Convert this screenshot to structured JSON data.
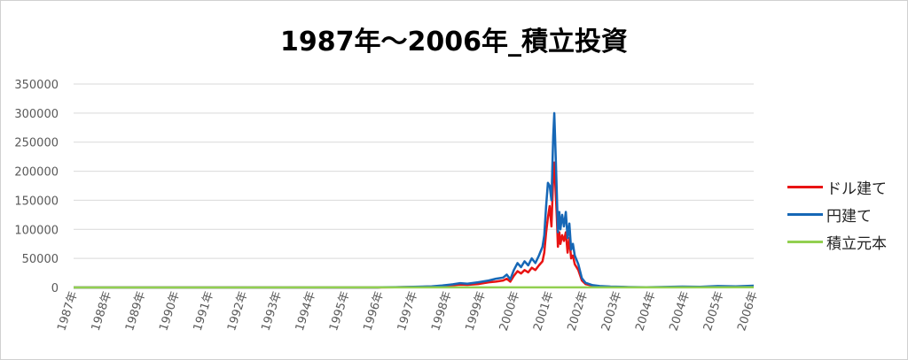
{
  "chart_data": {
    "type": "line",
    "title": "1987年～2006年_積立投資",
    "xlabel": "",
    "ylabel": "",
    "ylim": [
      0,
      350000
    ],
    "yticks": [
      0,
      50000,
      100000,
      150000,
      200000,
      250000,
      300000,
      350000
    ],
    "ytick_labels": [
      "0",
      "50000",
      "100000",
      "150000",
      "200000",
      "250000",
      "300000",
      "350000"
    ],
    "xtick_labels": [
      "1987年",
      "1988年",
      "1989年",
      "1990年",
      "1991年",
      "1992年",
      "1993年",
      "1994年",
      "1995年",
      "1996年",
      "1997年",
      "1998年",
      "1999年",
      "2000年",
      "2001年",
      "2002年",
      "2003年",
      "2004年",
      "2004年",
      "2005年",
      "2006年"
    ],
    "grid": true,
    "legend_position": "right",
    "series": [
      {
        "name": "ドル建て",
        "color": "#e81313",
        "points": [
          [
            1987.0,
            0
          ],
          [
            1995.5,
            0
          ],
          [
            1995.6,
            200
          ],
          [
            1996.0,
            400
          ],
          [
            1996.5,
            800
          ],
          [
            1997.0,
            1500
          ],
          [
            1997.3,
            2500
          ],
          [
            1997.6,
            4000
          ],
          [
            1997.8,
            5000
          ],
          [
            1998.0,
            4500
          ],
          [
            1998.3,
            6000
          ],
          [
            1998.6,
            9000
          ],
          [
            1998.8,
            10000
          ],
          [
            1999.0,
            12000
          ],
          [
            1999.1,
            15000
          ],
          [
            1999.2,
            10000
          ],
          [
            1999.3,
            20000
          ],
          [
            1999.4,
            28000
          ],
          [
            1999.5,
            24000
          ],
          [
            1999.6,
            30000
          ],
          [
            1999.7,
            26000
          ],
          [
            1999.8,
            34000
          ],
          [
            1999.9,
            30000
          ],
          [
            2000.0,
            38000
          ],
          [
            2000.1,
            45000
          ],
          [
            2000.15,
            60000
          ],
          [
            2000.2,
            95000
          ],
          [
            2000.25,
            120000
          ],
          [
            2000.3,
            140000
          ],
          [
            2000.35,
            105000
          ],
          [
            2000.4,
            190000
          ],
          [
            2000.43,
            215000
          ],
          [
            2000.47,
            160000
          ],
          [
            2000.5,
            120000
          ],
          [
            2000.53,
            70000
          ],
          [
            2000.57,
            95000
          ],
          [
            2000.6,
            75000
          ],
          [
            2000.65,
            90000
          ],
          [
            2000.7,
            80000
          ],
          [
            2000.75,
            95000
          ],
          [
            2000.8,
            60000
          ],
          [
            2000.85,
            85000
          ],
          [
            2000.9,
            50000
          ],
          [
            2000.95,
            55000
          ],
          [
            2001.0,
            40000
          ],
          [
            2001.1,
            30000
          ],
          [
            2001.2,
            12000
          ],
          [
            2001.3,
            6000
          ],
          [
            2001.5,
            3000
          ],
          [
            2001.7,
            2000
          ],
          [
            2002.0,
            1200
          ],
          [
            2002.3,
            800
          ],
          [
            2002.5,
            500
          ],
          [
            2003.0,
            300
          ],
          [
            2004.0,
            400
          ],
          [
            2004.5,
            500
          ],
          [
            2005.0,
            600
          ],
          [
            2005.5,
            700
          ],
          [
            2006.0,
            900
          ]
        ]
      },
      {
        "name": "円建て",
        "color": "#1667b6",
        "points": [
          [
            1987.0,
            0
          ],
          [
            1995.5,
            0
          ],
          [
            1995.6,
            300
          ],
          [
            1996.0,
            600
          ],
          [
            1996.5,
            1200
          ],
          [
            1997.0,
            2000
          ],
          [
            1997.3,
            3500
          ],
          [
            1997.6,
            5500
          ],
          [
            1997.8,
            7500
          ],
          [
            1998.0,
            6500
          ],
          [
            1998.3,
            9000
          ],
          [
            1998.6,
            12000
          ],
          [
            1998.8,
            15000
          ],
          [
            1999.0,
            17000
          ],
          [
            1999.1,
            22000
          ],
          [
            1999.2,
            14000
          ],
          [
            1999.3,
            30000
          ],
          [
            1999.4,
            42000
          ],
          [
            1999.5,
            35000
          ],
          [
            1999.6,
            45000
          ],
          [
            1999.7,
            38000
          ],
          [
            1999.8,
            50000
          ],
          [
            1999.9,
            42000
          ],
          [
            2000.0,
            55000
          ],
          [
            2000.1,
            70000
          ],
          [
            2000.15,
            90000
          ],
          [
            2000.2,
            140000
          ],
          [
            2000.25,
            180000
          ],
          [
            2000.3,
            175000
          ],
          [
            2000.35,
            150000
          ],
          [
            2000.4,
            260000
          ],
          [
            2000.43,
            300000
          ],
          [
            2000.47,
            220000
          ],
          [
            2000.5,
            160000
          ],
          [
            2000.53,
            95000
          ],
          [
            2000.57,
            130000
          ],
          [
            2000.6,
            100000
          ],
          [
            2000.65,
            125000
          ],
          [
            2000.7,
            105000
          ],
          [
            2000.75,
            130000
          ],
          [
            2000.8,
            85000
          ],
          [
            2000.85,
            110000
          ],
          [
            2000.9,
            65000
          ],
          [
            2000.95,
            75000
          ],
          [
            2001.0,
            55000
          ],
          [
            2001.1,
            40000
          ],
          [
            2001.2,
            16000
          ],
          [
            2001.3,
            8000
          ],
          [
            2001.5,
            4000
          ],
          [
            2001.7,
            2500
          ],
          [
            2002.0,
            1500
          ],
          [
            2002.3,
            1000
          ],
          [
            2002.5,
            700
          ],
          [
            2003.0,
            400
          ],
          [
            2004.0,
            1500
          ],
          [
            2004.5,
            1200
          ],
          [
            2005.0,
            2500
          ],
          [
            2005.5,
            2000
          ],
          [
            2006.0,
            3000
          ]
        ]
      },
      {
        "name": "積立元本",
        "color": "#92d050",
        "points": [
          [
            1987.0,
            0
          ],
          [
            2006.0,
            240
          ]
        ]
      }
    ]
  }
}
